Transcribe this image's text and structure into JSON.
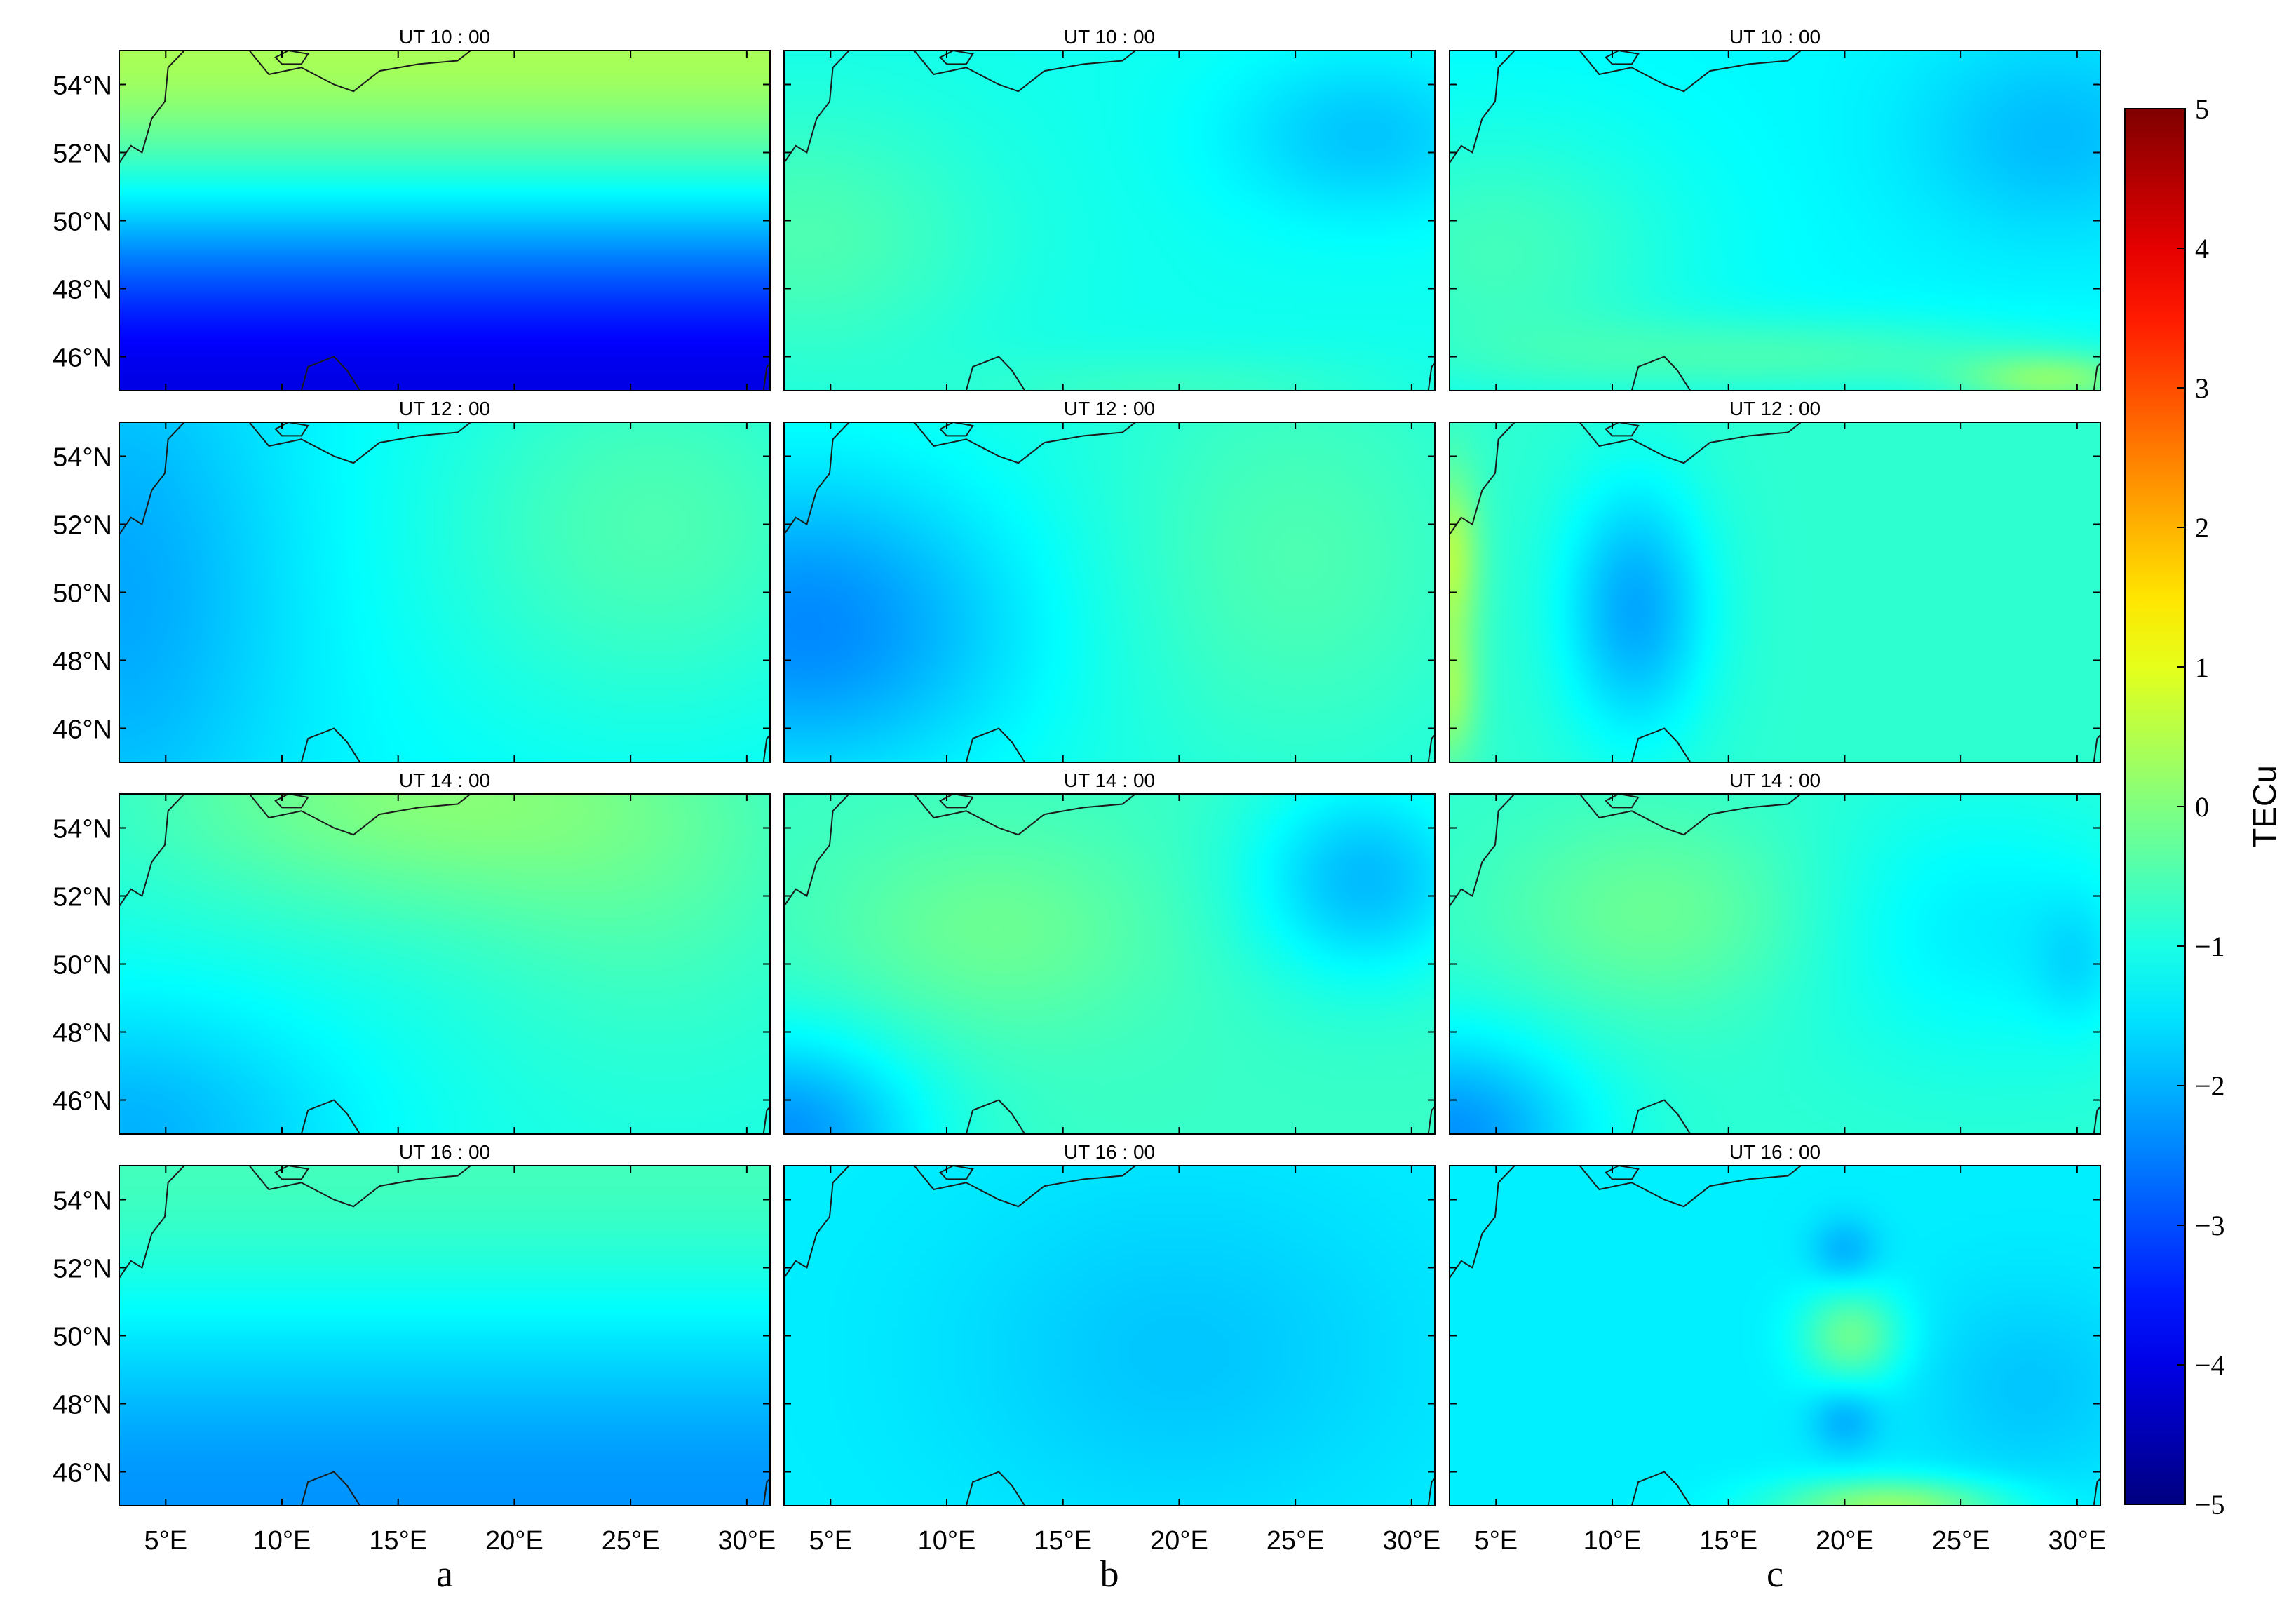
{
  "chart_data": {
    "type": "heatmap",
    "layout": {
      "rows": 4,
      "columns": 3
    },
    "column_labels": [
      "a",
      "b",
      "c"
    ],
    "row_titles": [
      "UT 10 : 00",
      "UT 12 : 00",
      "UT 14 : 00",
      "UT 16 : 00"
    ],
    "x_range": [
      3,
      31
    ],
    "y_range": [
      45,
      55
    ],
    "x_ticks": [
      5,
      10,
      15,
      20,
      25,
      30
    ],
    "x_tick_labels": [
      "5°E",
      "10°E",
      "15°E",
      "20°E",
      "25°E",
      "30°E"
    ],
    "y_ticks": [
      46,
      48,
      50,
      52,
      54
    ],
    "y_tick_labels": [
      "46°N",
      "48°N",
      "50°N",
      "52°N",
      "54°N"
    ],
    "colorbar": {
      "label": "TECu",
      "range": [
        -5,
        5
      ],
      "ticks": [
        -5,
        -4,
        -3,
        -2,
        -1,
        0,
        1,
        2,
        3,
        4,
        5
      ],
      "tick_labels": [
        "−5",
        "−4",
        "−3",
        "−2",
        "−1",
        "0",
        "1",
        "2",
        "3",
        "4",
        "5"
      ],
      "colormap": "jet"
    },
    "panels": [
      {
        "column": "a",
        "title": "UT 10 : 00",
        "base": -1.0,
        "features": [
          {
            "type": "lat_gradient",
            "north": 0.4,
            "south": -4.0
          }
        ]
      },
      {
        "column": "b",
        "title": "UT 10 : 00",
        "base": -1.1,
        "features": [
          {
            "lon": 4,
            "lat": 49.5,
            "amp": 0.6,
            "rlon": 8,
            "rlat": 4
          },
          {
            "lon": 28,
            "lat": 52.5,
            "amp": -0.7,
            "rlon": 6,
            "rlat": 2.5
          },
          {
            "lon": 20,
            "lat": 45,
            "amp": 0.4,
            "rlon": 10,
            "rlat": 1.2
          }
        ]
      },
      {
        "column": "c",
        "title": "UT 10 : 00",
        "base": -1.3,
        "features": [
          {
            "lon": 5,
            "lat": 49,
            "amp": 0.7,
            "rlon": 8,
            "rlat": 4
          },
          {
            "lon": 29,
            "lat": 52.5,
            "amp": -0.6,
            "rlon": 6,
            "rlat": 3
          },
          {
            "lon": 29,
            "lat": 45.3,
            "amp": 1.2,
            "rlon": 4,
            "rlat": 0.8
          },
          {
            "lon": 18,
            "lat": 46,
            "amp": 0.7,
            "rlon": 12,
            "rlat": 1.2
          }
        ]
      },
      {
        "column": "a",
        "title": "UT 12 : 00",
        "base": -1.3,
        "features": [
          {
            "lon": 3,
            "lat": 50,
            "amp": -0.8,
            "rlon": 7,
            "rlat": 8
          },
          {
            "lon": 26,
            "lat": 52,
            "amp": 0.8,
            "rlon": 10,
            "rlat": 6
          }
        ]
      },
      {
        "column": "b",
        "title": "UT 12 : 00",
        "base": -1.0,
        "features": [
          {
            "lon": 4,
            "lat": 49,
            "amp": -1.4,
            "rlon": 9,
            "rlat": 4.5
          },
          {
            "lon": 25,
            "lat": 51,
            "amp": 0.5,
            "rlon": 8,
            "rlat": 6
          }
        ]
      },
      {
        "column": "c",
        "title": "UT 12 : 00",
        "base": -0.8,
        "features": [
          {
            "lon": 11,
            "lat": 49.5,
            "amp": -1.3,
            "rlon": 3.2,
            "rlat": 3.8
          },
          {
            "lon": 3,
            "lat": 51,
            "amp": 1.3,
            "rlon": 1.3,
            "rlat": 2.5
          },
          {
            "lon": 3,
            "lat": 47,
            "amp": 1.0,
            "rlon": 1.2,
            "rlat": 2
          }
        ]
      },
      {
        "column": "a",
        "title": "UT 14 : 00",
        "base": -1.0,
        "features": [
          {
            "lon": 16,
            "lat": 55,
            "amp": 1.0,
            "rlon": 12,
            "rlat": 3.5
          },
          {
            "lon": 3,
            "lat": 45,
            "amp": -1.0,
            "rlon": 10,
            "rlat": 4
          },
          {
            "lon": 26,
            "lat": 52,
            "amp": 0.4,
            "rlon": 8,
            "rlat": 5
          }
        ]
      },
      {
        "column": "b",
        "title": "UT 14 : 00",
        "base": -0.7,
        "features": [
          {
            "lon": 28,
            "lat": 52.5,
            "amp": -1.2,
            "rlon": 5,
            "rlat": 3
          },
          {
            "lon": 3,
            "lat": 45,
            "amp": -1.6,
            "rlon": 6,
            "rlat": 3
          },
          {
            "lon": 12,
            "lat": 51,
            "amp": 0.5,
            "rlon": 7,
            "rlat": 3
          }
        ]
      },
      {
        "column": "c",
        "title": "UT 14 : 00",
        "base": -0.8,
        "features": [
          {
            "lon": 26,
            "lat": 51,
            "amp": -0.6,
            "rlon": 8,
            "rlat": 4
          },
          {
            "lon": 3,
            "lat": 45,
            "amp": -1.5,
            "rlon": 6,
            "rlat": 3
          },
          {
            "lon": 12,
            "lat": 51.5,
            "amp": 0.6,
            "rlon": 7,
            "rlat": 3
          },
          {
            "lon": 30,
            "lat": 50,
            "amp": -0.4,
            "rlon": 2,
            "rlat": 2
          }
        ]
      },
      {
        "column": "a",
        "title": "UT 16 : 00",
        "base": -1.1,
        "features": [
          {
            "lat_gradient": true,
            "type": "lat_gradient",
            "north": -0.6,
            "south": -2.3
          }
        ]
      },
      {
        "column": "b",
        "title": "UT 16 : 00",
        "base": -1.4,
        "features": [
          {
            "lon": 20,
            "lat": 49.5,
            "amp": -0.4,
            "rlon": 10,
            "rlat": 5
          }
        ]
      },
      {
        "column": "c",
        "title": "UT 16 : 00",
        "base": -1.4,
        "features": [
          {
            "lon": 20.3,
            "lat": 50,
            "amp": 1.2,
            "rlon": 2.2,
            "rlat": 1.4
          },
          {
            "lon": 20,
            "lat": 52.5,
            "amp": -0.6,
            "rlon": 1.5,
            "rlat": 1
          },
          {
            "lon": 20,
            "lat": 47.5,
            "amp": -0.6,
            "rlon": 1.5,
            "rlat": 1
          },
          {
            "lon": 22,
            "lat": 45,
            "amp": 1.6,
            "rlon": 5,
            "rlat": 0.8
          },
          {
            "lon": 28,
            "lat": 48.5,
            "amp": -0.4,
            "rlon": 5,
            "rlat": 3
          }
        ]
      }
    ]
  }
}
